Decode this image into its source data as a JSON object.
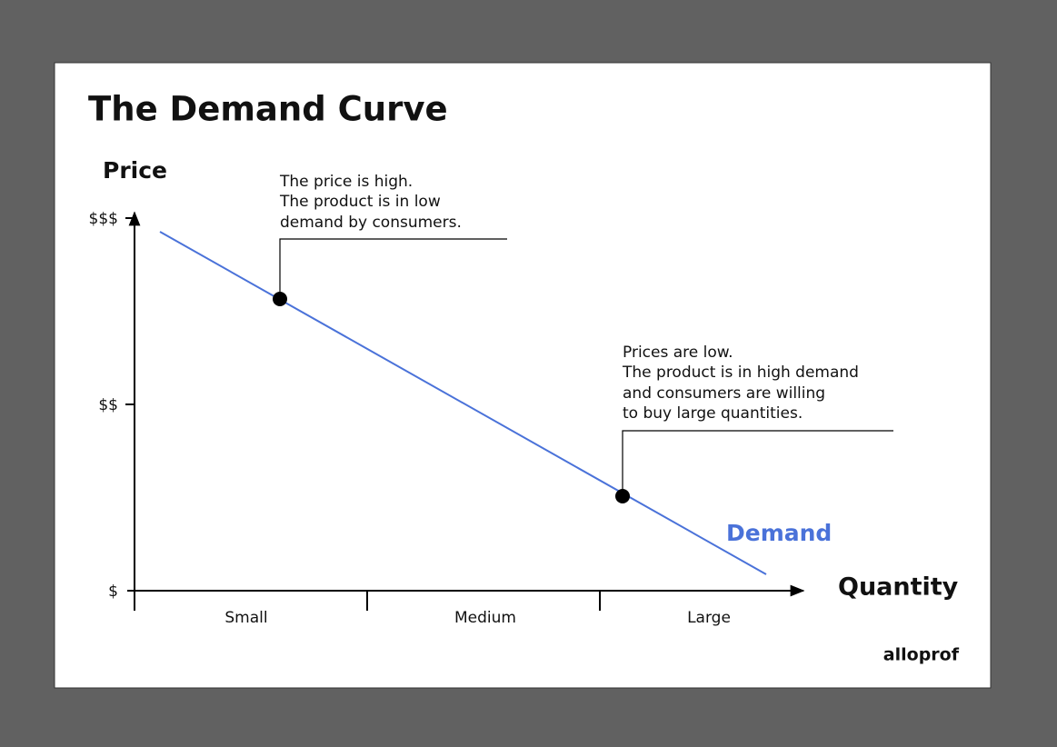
{
  "title": "The Demand Curve",
  "y_axis": {
    "label": "Price",
    "ticks": [
      "$$$",
      "$$",
      "$"
    ]
  },
  "x_axis": {
    "label": "Quantity",
    "ticks": [
      "Small",
      "Medium",
      "Large"
    ]
  },
  "curve_label": "Demand",
  "annotations": [
    {
      "lines": [
        "The price is high.",
        "The product is in low",
        "demand by consumers."
      ]
    },
    {
      "lines": [
        "Prices are low.",
        "The product is in high demand",
        "and consumers are willing",
        "to buy large quantities."
      ]
    }
  ],
  "logo": "alloprof"
}
